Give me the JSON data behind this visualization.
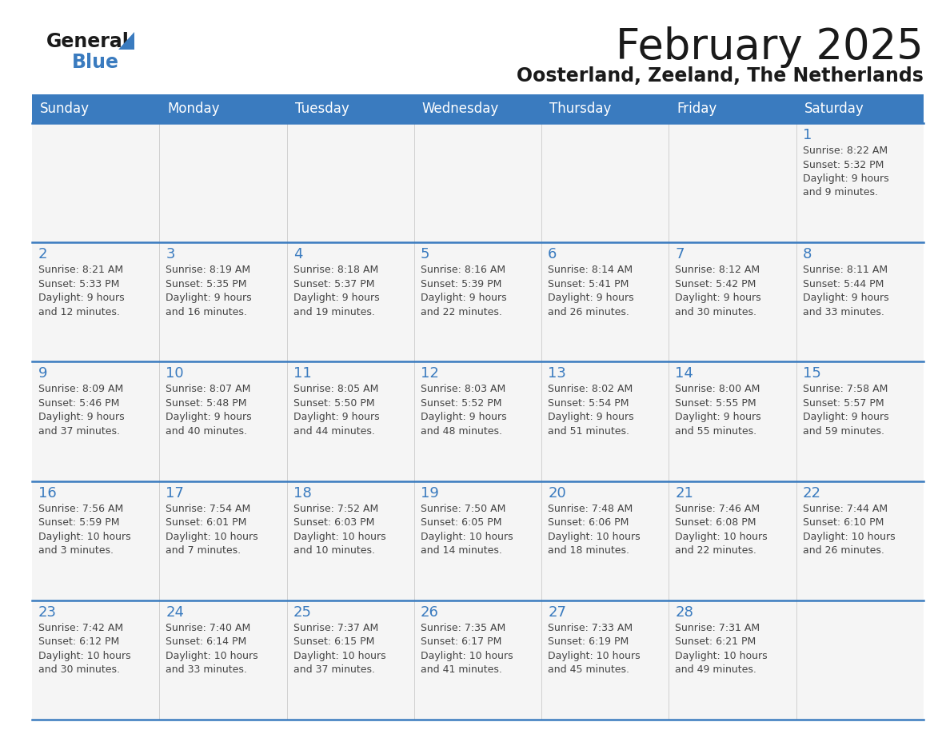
{
  "title": "February 2025",
  "subtitle": "Oosterland, Zeeland, The Netherlands",
  "header_bg": "#3a7bbf",
  "header_text_color": "#ffffff",
  "day_headers": [
    "Sunday",
    "Monday",
    "Tuesday",
    "Wednesday",
    "Thursday",
    "Friday",
    "Saturday"
  ],
  "cell_bg": "#f5f5f5",
  "separator_color": "#3a7bbf",
  "day_number_color": "#3a7bbf",
  "text_color": "#444444",
  "logo_general_color": "#1a1a1a",
  "logo_blue_color": "#3a7bbf",
  "weeks": [
    {
      "days": [
        {
          "day": null,
          "info": null
        },
        {
          "day": null,
          "info": null
        },
        {
          "day": null,
          "info": null
        },
        {
          "day": null,
          "info": null
        },
        {
          "day": null,
          "info": null
        },
        {
          "day": null,
          "info": null
        },
        {
          "day": 1,
          "info": "Sunrise: 8:22 AM\nSunset: 5:32 PM\nDaylight: 9 hours\nand 9 minutes."
        }
      ]
    },
    {
      "days": [
        {
          "day": 2,
          "info": "Sunrise: 8:21 AM\nSunset: 5:33 PM\nDaylight: 9 hours\nand 12 minutes."
        },
        {
          "day": 3,
          "info": "Sunrise: 8:19 AM\nSunset: 5:35 PM\nDaylight: 9 hours\nand 16 minutes."
        },
        {
          "day": 4,
          "info": "Sunrise: 8:18 AM\nSunset: 5:37 PM\nDaylight: 9 hours\nand 19 minutes."
        },
        {
          "day": 5,
          "info": "Sunrise: 8:16 AM\nSunset: 5:39 PM\nDaylight: 9 hours\nand 22 minutes."
        },
        {
          "day": 6,
          "info": "Sunrise: 8:14 AM\nSunset: 5:41 PM\nDaylight: 9 hours\nand 26 minutes."
        },
        {
          "day": 7,
          "info": "Sunrise: 8:12 AM\nSunset: 5:42 PM\nDaylight: 9 hours\nand 30 minutes."
        },
        {
          "day": 8,
          "info": "Sunrise: 8:11 AM\nSunset: 5:44 PM\nDaylight: 9 hours\nand 33 minutes."
        }
      ]
    },
    {
      "days": [
        {
          "day": 9,
          "info": "Sunrise: 8:09 AM\nSunset: 5:46 PM\nDaylight: 9 hours\nand 37 minutes."
        },
        {
          "day": 10,
          "info": "Sunrise: 8:07 AM\nSunset: 5:48 PM\nDaylight: 9 hours\nand 40 minutes."
        },
        {
          "day": 11,
          "info": "Sunrise: 8:05 AM\nSunset: 5:50 PM\nDaylight: 9 hours\nand 44 minutes."
        },
        {
          "day": 12,
          "info": "Sunrise: 8:03 AM\nSunset: 5:52 PM\nDaylight: 9 hours\nand 48 minutes."
        },
        {
          "day": 13,
          "info": "Sunrise: 8:02 AM\nSunset: 5:54 PM\nDaylight: 9 hours\nand 51 minutes."
        },
        {
          "day": 14,
          "info": "Sunrise: 8:00 AM\nSunset: 5:55 PM\nDaylight: 9 hours\nand 55 minutes."
        },
        {
          "day": 15,
          "info": "Sunrise: 7:58 AM\nSunset: 5:57 PM\nDaylight: 9 hours\nand 59 minutes."
        }
      ]
    },
    {
      "days": [
        {
          "day": 16,
          "info": "Sunrise: 7:56 AM\nSunset: 5:59 PM\nDaylight: 10 hours\nand 3 minutes."
        },
        {
          "day": 17,
          "info": "Sunrise: 7:54 AM\nSunset: 6:01 PM\nDaylight: 10 hours\nand 7 minutes."
        },
        {
          "day": 18,
          "info": "Sunrise: 7:52 AM\nSunset: 6:03 PM\nDaylight: 10 hours\nand 10 minutes."
        },
        {
          "day": 19,
          "info": "Sunrise: 7:50 AM\nSunset: 6:05 PM\nDaylight: 10 hours\nand 14 minutes."
        },
        {
          "day": 20,
          "info": "Sunrise: 7:48 AM\nSunset: 6:06 PM\nDaylight: 10 hours\nand 18 minutes."
        },
        {
          "day": 21,
          "info": "Sunrise: 7:46 AM\nSunset: 6:08 PM\nDaylight: 10 hours\nand 22 minutes."
        },
        {
          "day": 22,
          "info": "Sunrise: 7:44 AM\nSunset: 6:10 PM\nDaylight: 10 hours\nand 26 minutes."
        }
      ]
    },
    {
      "days": [
        {
          "day": 23,
          "info": "Sunrise: 7:42 AM\nSunset: 6:12 PM\nDaylight: 10 hours\nand 30 minutes."
        },
        {
          "day": 24,
          "info": "Sunrise: 7:40 AM\nSunset: 6:14 PM\nDaylight: 10 hours\nand 33 minutes."
        },
        {
          "day": 25,
          "info": "Sunrise: 7:37 AM\nSunset: 6:15 PM\nDaylight: 10 hours\nand 37 minutes."
        },
        {
          "day": 26,
          "info": "Sunrise: 7:35 AM\nSunset: 6:17 PM\nDaylight: 10 hours\nand 41 minutes."
        },
        {
          "day": 27,
          "info": "Sunrise: 7:33 AM\nSunset: 6:19 PM\nDaylight: 10 hours\nand 45 minutes."
        },
        {
          "day": 28,
          "info": "Sunrise: 7:31 AM\nSunset: 6:21 PM\nDaylight: 10 hours\nand 49 minutes."
        },
        {
          "day": null,
          "info": null
        }
      ]
    }
  ]
}
